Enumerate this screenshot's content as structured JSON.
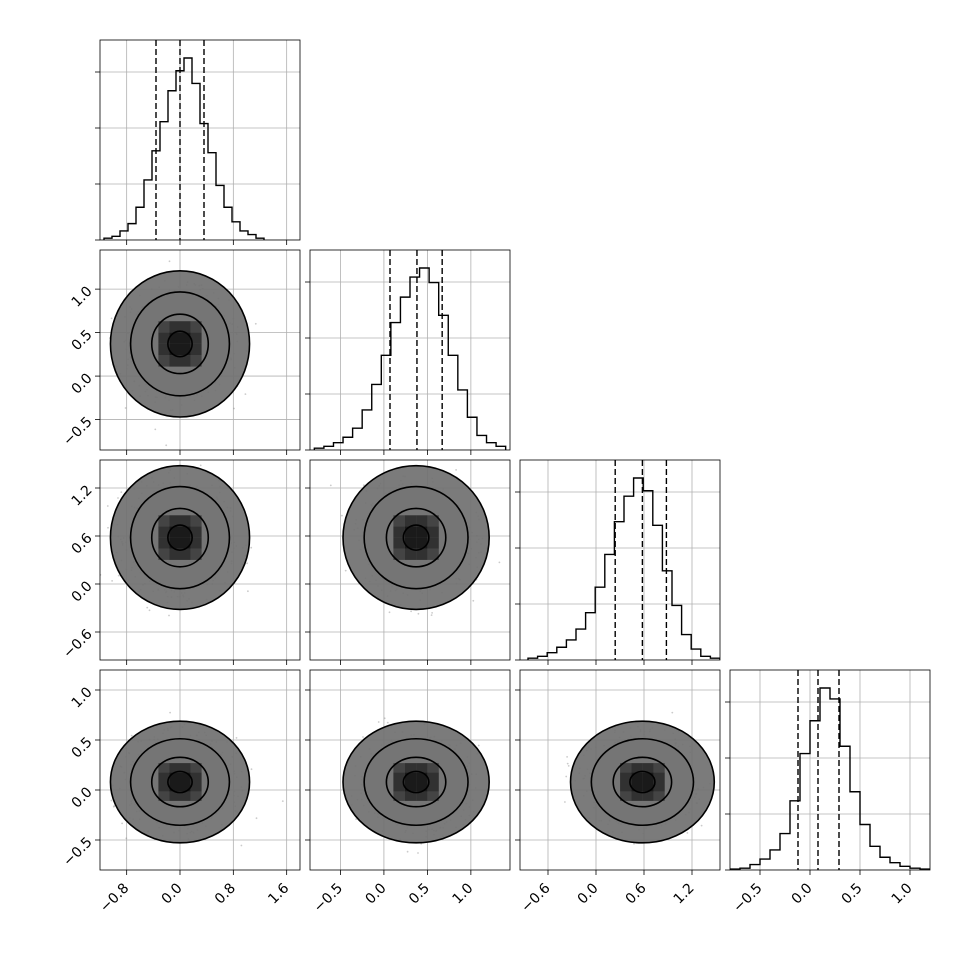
{
  "chart_data": {
    "type": "corner",
    "parameters": 4,
    "grid": true,
    "axes": [
      {
        "range": [
          -1.2,
          1.8
        ],
        "ticks": [
          -0.8,
          0.0,
          0.8,
          1.6
        ],
        "tick_labels": [
          "−0.8",
          "0.0",
          "0.8",
          "1.6"
        ]
      },
      {
        "range": [
          -0.85,
          1.45
        ],
        "ticks": [
          -0.5,
          0.0,
          0.5,
          1.0
        ],
        "tick_labels": [
          "−0.5",
          "0.0",
          "0.5",
          "1.0"
        ]
      },
      {
        "range": [
          -0.95,
          1.55
        ],
        "ticks": [
          -0.6,
          0.0,
          0.6,
          1.2
        ],
        "tick_labels": [
          "−0.6",
          "0.0",
          "0.6",
          "1.2"
        ]
      },
      {
        "range": [
          -0.8,
          1.2
        ],
        "ticks": [
          -0.5,
          0.0,
          0.5,
          1.0
        ],
        "tick_labels": [
          "−0.5",
          "0.0",
          "0.5",
          "1.0"
        ]
      }
    ],
    "marginals": [
      {
        "mean": 0.0,
        "sd": 0.36,
        "quantiles": [
          -0.36,
          0.0,
          0.36
        ],
        "bins": [
          -1.14,
          -1.02,
          -0.9,
          -0.78,
          -0.66,
          -0.54,
          -0.42,
          -0.3,
          -0.18,
          -0.06,
          0.06,
          0.18,
          0.3,
          0.42,
          0.54,
          0.66,
          0.78,
          0.9,
          1.02,
          1.14,
          1.26
        ],
        "counts": [
          0.01,
          0.02,
          0.05,
          0.09,
          0.18,
          0.33,
          0.49,
          0.65,
          0.82,
          0.93,
          1.0,
          0.86,
          0.64,
          0.48,
          0.3,
          0.18,
          0.1,
          0.05,
          0.03,
          0.01
        ]
      },
      {
        "mean": 0.37,
        "sd": 0.29,
        "quantiles": [
          0.07,
          0.38,
          0.67
        ],
        "bins": [
          -0.8,
          -0.69,
          -0.58,
          -0.47,
          -0.36,
          -0.25,
          -0.14,
          -0.03,
          0.08,
          0.19,
          0.3,
          0.41,
          0.52,
          0.63,
          0.74,
          0.85,
          0.96,
          1.07,
          1.18,
          1.29,
          1.4
        ],
        "counts": [
          0.01,
          0.02,
          0.04,
          0.07,
          0.12,
          0.22,
          0.36,
          0.52,
          0.7,
          0.84,
          0.95,
          1.0,
          0.92,
          0.74,
          0.52,
          0.33,
          0.18,
          0.08,
          0.04,
          0.02
        ]
      },
      {
        "mean": 0.58,
        "sd": 0.31,
        "quantiles": [
          0.24,
          0.58,
          0.88
        ],
        "bins": [
          -0.85,
          -0.73,
          -0.61,
          -0.49,
          -0.37,
          -0.25,
          -0.13,
          -0.01,
          0.11,
          0.23,
          0.35,
          0.47,
          0.59,
          0.71,
          0.83,
          0.95,
          1.07,
          1.19,
          1.31,
          1.43,
          1.55
        ],
        "counts": [
          0.01,
          0.02,
          0.04,
          0.07,
          0.11,
          0.17,
          0.26,
          0.4,
          0.58,
          0.76,
          0.9,
          1.0,
          0.93,
          0.74,
          0.49,
          0.3,
          0.14,
          0.06,
          0.02,
          0.01
        ]
      },
      {
        "mean": 0.08,
        "sd": 0.21,
        "quantiles": [
          -0.12,
          0.08,
          0.29
        ],
        "bins": [
          -0.8,
          -0.7,
          -0.6,
          -0.5,
          -0.4,
          -0.3,
          -0.2,
          -0.1,
          0.0,
          0.1,
          0.2,
          0.3,
          0.4,
          0.5,
          0.6,
          0.7,
          0.8,
          0.9,
          1.0,
          1.1,
          1.2
        ],
        "counts": [
          0.005,
          0.01,
          0.03,
          0.06,
          0.11,
          0.2,
          0.38,
          0.64,
          0.82,
          1.0,
          0.94,
          0.68,
          0.43,
          0.25,
          0.13,
          0.07,
          0.04,
          0.02,
          0.01,
          0.005
        ]
      }
    ],
    "joint_contour_levels": [
      0.12,
      0.5,
      0.88,
      0.985
    ],
    "scatter_points_per_panel": 900,
    "colors": {
      "hist": "#000000",
      "points": "#8c8c8c",
      "density": "#000000",
      "grid": "#b0b0b0"
    }
  }
}
